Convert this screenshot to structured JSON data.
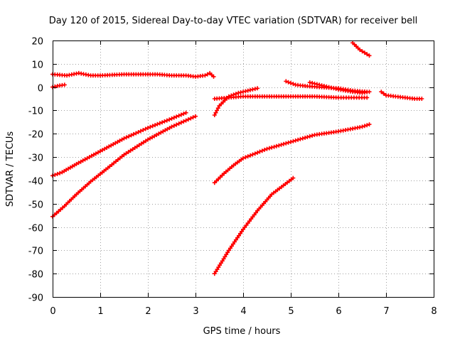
{
  "chart_data": {
    "type": "scatter",
    "title": "Day 120 of 2015, Sidereal Day-to-day VTEC variation (SDTVAR) for receiver bell",
    "xlabel": "GPS time / hours",
    "ylabel": "SDTVAR / TECUs",
    "xlim": [
      0,
      8
    ],
    "ylim": [
      -90,
      20
    ],
    "xticks": [
      "0",
      "1",
      "2",
      "3",
      "4",
      "5",
      "6",
      "7",
      "8"
    ],
    "yticks": [
      "20",
      "10",
      "0",
      "-10",
      "-20",
      "-30",
      "-40",
      "-50",
      "-60",
      "-70",
      "-80",
      "-90"
    ],
    "grid": true,
    "marker_color": "#ff0000",
    "series": [
      {
        "x": [
          0.0,
          0.1,
          0.25
        ],
        "y": [
          0.0,
          0.5,
          1.0
        ]
      },
      {
        "x": [
          0.0,
          0.3,
          0.55,
          0.8,
          1.0,
          1.5,
          2.0,
          2.2,
          2.5,
          2.8,
          3.0,
          3.2,
          3.3,
          3.38
        ],
        "y": [
          5.5,
          5.0,
          6.0,
          5.0,
          5.0,
          5.5,
          5.5,
          5.5,
          5.0,
          5.0,
          4.5,
          5.0,
          6.0,
          4.5
        ]
      },
      {
        "x": [
          0.0,
          0.2,
          0.5,
          1.0,
          1.5,
          2.0,
          2.5,
          2.8
        ],
        "y": [
          -38.0,
          -36.5,
          -33.0,
          -27.5,
          -22.0,
          -17.5,
          -13.5,
          -11.0
        ]
      },
      {
        "x": [
          0.0,
          0.25,
          0.5,
          0.8,
          1.2,
          1.5,
          2.0,
          2.5,
          3.0
        ],
        "y": [
          -55.5,
          -51.0,
          -46.0,
          -40.5,
          -34.0,
          -29.0,
          -22.5,
          -17.0,
          -12.5
        ]
      },
      {
        "x": [
          3.4,
          3.5,
          3.7,
          3.9,
          4.1,
          4.3
        ],
        "y": [
          -12.0,
          -8.0,
          -4.0,
          -2.5,
          -1.5,
          -0.5
        ]
      },
      {
        "x": [
          3.4,
          3.7,
          4.0,
          4.5,
          5.0,
          5.5,
          6.0,
          6.6
        ],
        "y": [
          -5.0,
          -4.5,
          -4.0,
          -4.0,
          -4.0,
          -4.0,
          -4.5,
          -4.5
        ]
      },
      {
        "x": [
          3.4,
          3.6,
          3.8,
          4.0,
          4.5,
          5.0,
          5.5,
          6.0,
          6.5,
          6.65
        ],
        "y": [
          -41.0,
          -37.0,
          -33.5,
          -30.5,
          -26.5,
          -23.5,
          -20.5,
          -19.0,
          -17.0,
          -16.0
        ]
      },
      {
        "x": [
          3.4,
          3.7,
          4.0,
          4.3,
          4.6,
          5.05
        ],
        "y": [
          -80.0,
          -70.0,
          -61.0,
          -53.0,
          -46.0,
          -39.0
        ]
      },
      {
        "x": [
          4.9,
          5.1,
          5.3,
          5.6,
          6.0,
          6.3,
          6.6
        ],
        "y": [
          2.5,
          1.0,
          0.5,
          0.0,
          -0.5,
          -1.5,
          -2.0
        ]
      },
      {
        "x": [
          5.4,
          5.7,
          6.0,
          6.3,
          6.5,
          6.65
        ],
        "y": [
          2.0,
          0.5,
          -1.0,
          -2.0,
          -2.5,
          -2.0
        ]
      },
      {
        "x": [
          6.3,
          6.45,
          6.65
        ],
        "y": [
          19.0,
          16.0,
          13.5
        ]
      },
      {
        "x": [
          6.9,
          7.0,
          7.2,
          7.4,
          7.6,
          7.75
        ],
        "y": [
          -2.0,
          -3.5,
          -4.0,
          -4.5,
          -5.0,
          -5.0
        ]
      }
    ]
  }
}
